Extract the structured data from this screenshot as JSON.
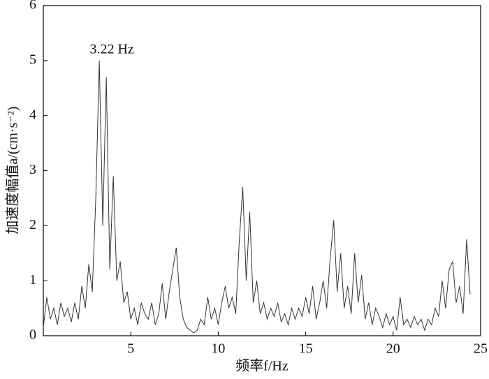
{
  "chart_data": {
    "type": "line",
    "xlabel": "频率f/Hz",
    "ylabel": "加速度幅值a/(cm·s⁻²)",
    "annotation": "3.22 Hz",
    "xlim": [
      0,
      25
    ],
    "xticks": [
      5,
      10,
      15,
      20,
      25
    ],
    "ylim": [
      0,
      6
    ],
    "yticks": [
      0,
      1,
      2,
      3,
      4,
      5,
      6
    ],
    "x": [
      0,
      0.2,
      0.4,
      0.6,
      0.8,
      1,
      1.2,
      1.4,
      1.6,
      1.8,
      2,
      2.2,
      2.4,
      2.6,
      2.8,
      3,
      3.2,
      3.4,
      3.6,
      3.8,
      4,
      4.2,
      4.4,
      4.6,
      4.8,
      5,
      5.2,
      5.4,
      5.6,
      5.8,
      6,
      6.2,
      6.4,
      6.6,
      6.8,
      7,
      7.2,
      7.4,
      7.6,
      7.8,
      8,
      8.2,
      8.4,
      8.6,
      8.8,
      9,
      9.2,
      9.4,
      9.6,
      9.8,
      10,
      10.2,
      10.4,
      10.6,
      10.8,
      11,
      11.2,
      11.4,
      11.6,
      11.8,
      12,
      12.2,
      12.4,
      12.6,
      12.8,
      13,
      13.2,
      13.4,
      13.6,
      13.8,
      14,
      14.2,
      14.4,
      14.6,
      14.8,
      15,
      15.2,
      15.4,
      15.6,
      15.8,
      16,
      16.2,
      16.4,
      16.6,
      16.8,
      17,
      17.2,
      17.4,
      17.6,
      17.8,
      18,
      18.2,
      18.4,
      18.6,
      18.8,
      19,
      19.2,
      19.4,
      19.6,
      19.8,
      20,
      20.2,
      20.4,
      20.6,
      20.8,
      21,
      21.2,
      21.4,
      21.6,
      21.8,
      22,
      22.2,
      22.4,
      22.6,
      22.8,
      23,
      23.2,
      23.4,
      23.6,
      23.8,
      24,
      24.2,
      24.4
    ],
    "values": [
      0.15,
      0.7,
      0.3,
      0.5,
      0.2,
      0.6,
      0.35,
      0.5,
      0.25,
      0.6,
      0.3,
      0.9,
      0.5,
      1.3,
      0.8,
      2.5,
      5.0,
      2.0,
      4.7,
      1.2,
      2.9,
      1.0,
      1.35,
      0.6,
      0.8,
      0.3,
      0.5,
      0.2,
      0.6,
      0.4,
      0.3,
      0.6,
      0.2,
      0.4,
      0.95,
      0.3,
      0.8,
      1.2,
      1.6,
      0.7,
      0.3,
      0.15,
      0.1,
      0.05,
      0.1,
      0.3,
      0.2,
      0.7,
      0.3,
      0.5,
      0.2,
      0.6,
      0.9,
      0.5,
      0.7,
      0.4,
      1.7,
      2.7,
      1.0,
      2.25,
      0.6,
      1.0,
      0.4,
      0.6,
      0.3,
      0.5,
      0.35,
      0.6,
      0.25,
      0.4,
      0.2,
      0.5,
      0.3,
      0.5,
      0.35,
      0.7,
      0.4,
      0.9,
      0.3,
      0.6,
      1.0,
      0.5,
      1.4,
      2.1,
      0.8,
      1.5,
      0.5,
      0.9,
      0.4,
      1.5,
      0.6,
      1.1,
      0.3,
      0.6,
      0.2,
      0.5,
      0.35,
      0.15,
      0.4,
      0.2,
      0.35,
      0.1,
      0.7,
      0.2,
      0.3,
      0.15,
      0.35,
      0.2,
      0.3,
      0.1,
      0.3,
      0.2,
      0.5,
      0.35,
      1.0,
      0.5,
      1.2,
      1.35,
      0.6,
      0.9,
      0.4,
      1.75,
      0.75
    ],
    "color": "#333333"
  }
}
